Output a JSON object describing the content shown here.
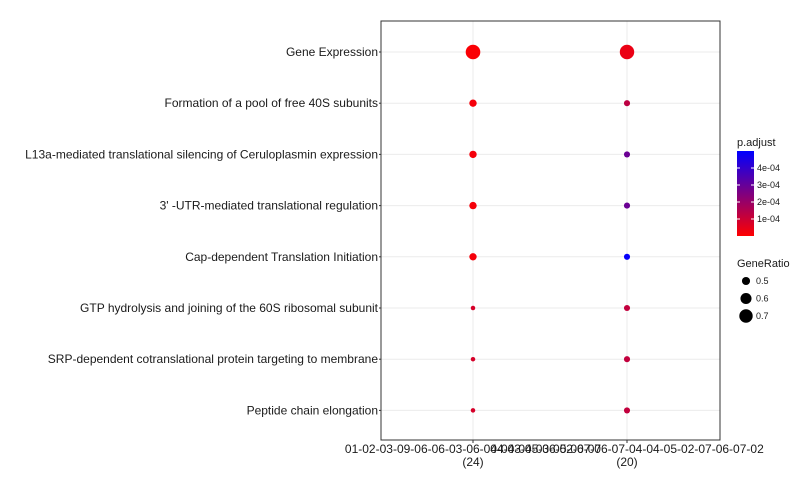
{
  "chart_data": {
    "type": "scatter",
    "title": "",
    "xlabel": "",
    "ylabel": "",
    "categories_y": [
      "Gene Expression",
      "Formation of a pool of free 40S subunits",
      "L13a-mediated translational silencing of Ceruloplasmin expression",
      "3' -UTR-mediated translational regulation",
      "Cap-dependent Translation Initiation",
      "GTP hydrolysis and joining of the 60S ribosomal subunit",
      "SRP-dependent cotranslational protein targeting to membrane",
      "Peptide chain elongation"
    ],
    "categories_x": [
      {
        "label": "01-02-03-09-06-06-03-06-04-04-04-03-05-06-07",
        "count": "(24)"
      },
      {
        "label": "04-03-05-06-02-07-06-07-04-04-05-02-07-06-07-02",
        "count": "(20)"
      }
    ],
    "points": [
      {
        "x": 0,
        "y": "Gene Expression",
        "gene_ratio": 0.76,
        "p_adjust": 1e-05
      },
      {
        "x": 0,
        "y": "Formation of a pool of free 40S subunits",
        "gene_ratio": 0.48,
        "p_adjust": 2e-05
      },
      {
        "x": 0,
        "y": "L13a-mediated translational silencing of Ceruloplasmin expression",
        "gene_ratio": 0.48,
        "p_adjust": 2e-05
      },
      {
        "x": 0,
        "y": "3' -UTR-mediated translational regulation",
        "gene_ratio": 0.48,
        "p_adjust": 2e-05
      },
      {
        "x": 0,
        "y": "Cap-dependent Translation Initiation",
        "gene_ratio": 0.48,
        "p_adjust": 2e-05
      },
      {
        "x": 0,
        "y": "GTP hydrolysis and joining of the 60S ribosomal subunit",
        "gene_ratio": 0.42,
        "p_adjust": 8e-05
      },
      {
        "x": 0,
        "y": "SRP-dependent cotranslational protein targeting to membrane",
        "gene_ratio": 0.42,
        "p_adjust": 8e-05
      },
      {
        "x": 0,
        "y": "Peptide chain elongation",
        "gene_ratio": 0.42,
        "p_adjust": 8e-05
      },
      {
        "x": 1,
        "y": "Gene Expression",
        "gene_ratio": 0.75,
        "p_adjust": 4e-05
      },
      {
        "x": 1,
        "y": "Formation of a pool of free 40S subunits",
        "gene_ratio": 0.45,
        "p_adjust": 0.00013
      },
      {
        "x": 1,
        "y": "L13a-mediated translational silencing of Ceruloplasmin expression",
        "gene_ratio": 0.45,
        "p_adjust": 0.00029
      },
      {
        "x": 1,
        "y": "3' -UTR-mediated translational regulation",
        "gene_ratio": 0.45,
        "p_adjust": 0.00029
      },
      {
        "x": 1,
        "y": "Cap-dependent Translation Initiation",
        "gene_ratio": 0.45,
        "p_adjust": 0.00049
      },
      {
        "x": 1,
        "y": "GTP hydrolysis and joining of the 60S ribosomal subunit",
        "gene_ratio": 0.45,
        "p_adjust": 0.00012
      },
      {
        "x": 1,
        "y": "SRP-dependent cotranslational protein targeting to membrane",
        "gene_ratio": 0.45,
        "p_adjust": 0.00012
      },
      {
        "x": 1,
        "y": "Peptide chain elongation",
        "gene_ratio": 0.45,
        "p_adjust": 0.00012
      }
    ],
    "color_scale": {
      "title": "p.adjust",
      "low_color": "#ff0000",
      "high_color": "#0000ff",
      "min": 0.0,
      "max": 0.0005,
      "ticks": [
        {
          "value": 0.0001,
          "label": "1e-04"
        },
        {
          "value": 0.0002,
          "label": "2e-04"
        },
        {
          "value": 0.0003,
          "label": "3e-04"
        },
        {
          "value": 0.0004,
          "label": "4e-04"
        }
      ]
    },
    "size_scale": {
      "title": "GeneRatio",
      "min": 0.4,
      "max": 0.78,
      "entries": [
        {
          "value": 0.5,
          "label": "0.5"
        },
        {
          "value": 0.6,
          "label": "0.6"
        },
        {
          "value": 0.7,
          "label": "0.7"
        }
      ]
    },
    "grid": true,
    "legend_position": "right"
  }
}
